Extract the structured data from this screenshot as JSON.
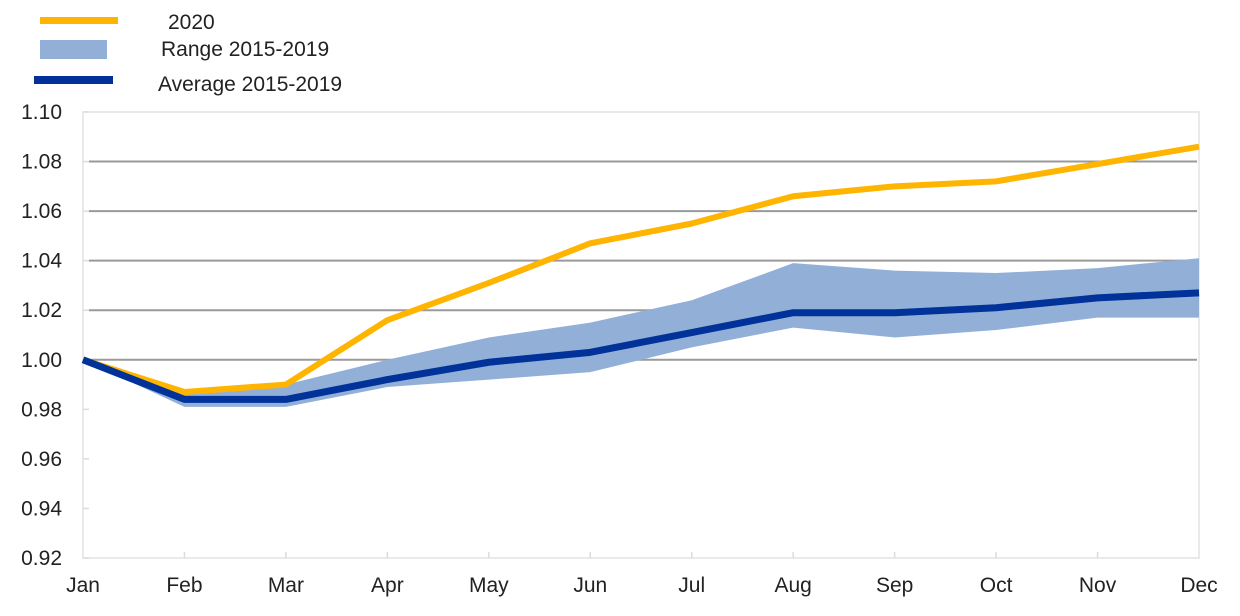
{
  "chart_data": {
    "type": "line",
    "title": "",
    "xlabel": "",
    "ylabel": "",
    "categories": [
      "Jan",
      "Feb",
      "Mar",
      "Apr",
      "May",
      "Jun",
      "Jul",
      "Aug",
      "Sep",
      "Oct",
      "Nov",
      "Dec"
    ],
    "ylim": [
      0.92,
      1.1
    ],
    "yticks": [
      "0.92",
      "0.94",
      "0.96",
      "0.98",
      "1.00",
      "1.02",
      "1.04",
      "1.06",
      "1.08",
      "1.10"
    ],
    "ytick_values": [
      0.92,
      0.94,
      0.96,
      0.98,
      1.0,
      1.02,
      1.04,
      1.06,
      1.08,
      1.1
    ],
    "gridlines": [
      1.0,
      1.02,
      1.04,
      1.06,
      1.08
    ],
    "grid": true,
    "legend_position": "top-left",
    "series": [
      {
        "name": "2020",
        "kind": "line",
        "color": "#FFB400",
        "values": [
          1.0,
          0.987,
          0.99,
          1.016,
          1.031,
          1.047,
          1.055,
          1.066,
          1.07,
          1.072,
          1.079,
          1.086
        ]
      },
      {
        "name": "Range 2015-2019",
        "kind": "band",
        "color": "#92B0D7",
        "lower": [
          1.0,
          0.981,
          0.981,
          0.989,
          0.992,
          0.995,
          1.005,
          1.013,
          1.009,
          1.012,
          1.017,
          1.017
        ],
        "upper": [
          1.0,
          0.986,
          0.99,
          1.0,
          1.009,
          1.015,
          1.024,
          1.039,
          1.036,
          1.035,
          1.037,
          1.041
        ]
      },
      {
        "name": "Average 2015-2019",
        "kind": "line",
        "color": "#003299",
        "values": [
          1.0,
          0.984,
          0.984,
          0.992,
          0.999,
          1.003,
          1.011,
          1.019,
          1.019,
          1.021,
          1.025,
          1.027
        ]
      }
    ],
    "legend": [
      {
        "label": "2020",
        "symbol": "line",
        "color": "#FFB400"
      },
      {
        "label": "Range 2015-2019",
        "symbol": "box",
        "color": "#92B0D7"
      },
      {
        "label": "Average 2015-2019",
        "symbol": "line",
        "color": "#003299"
      }
    ]
  }
}
